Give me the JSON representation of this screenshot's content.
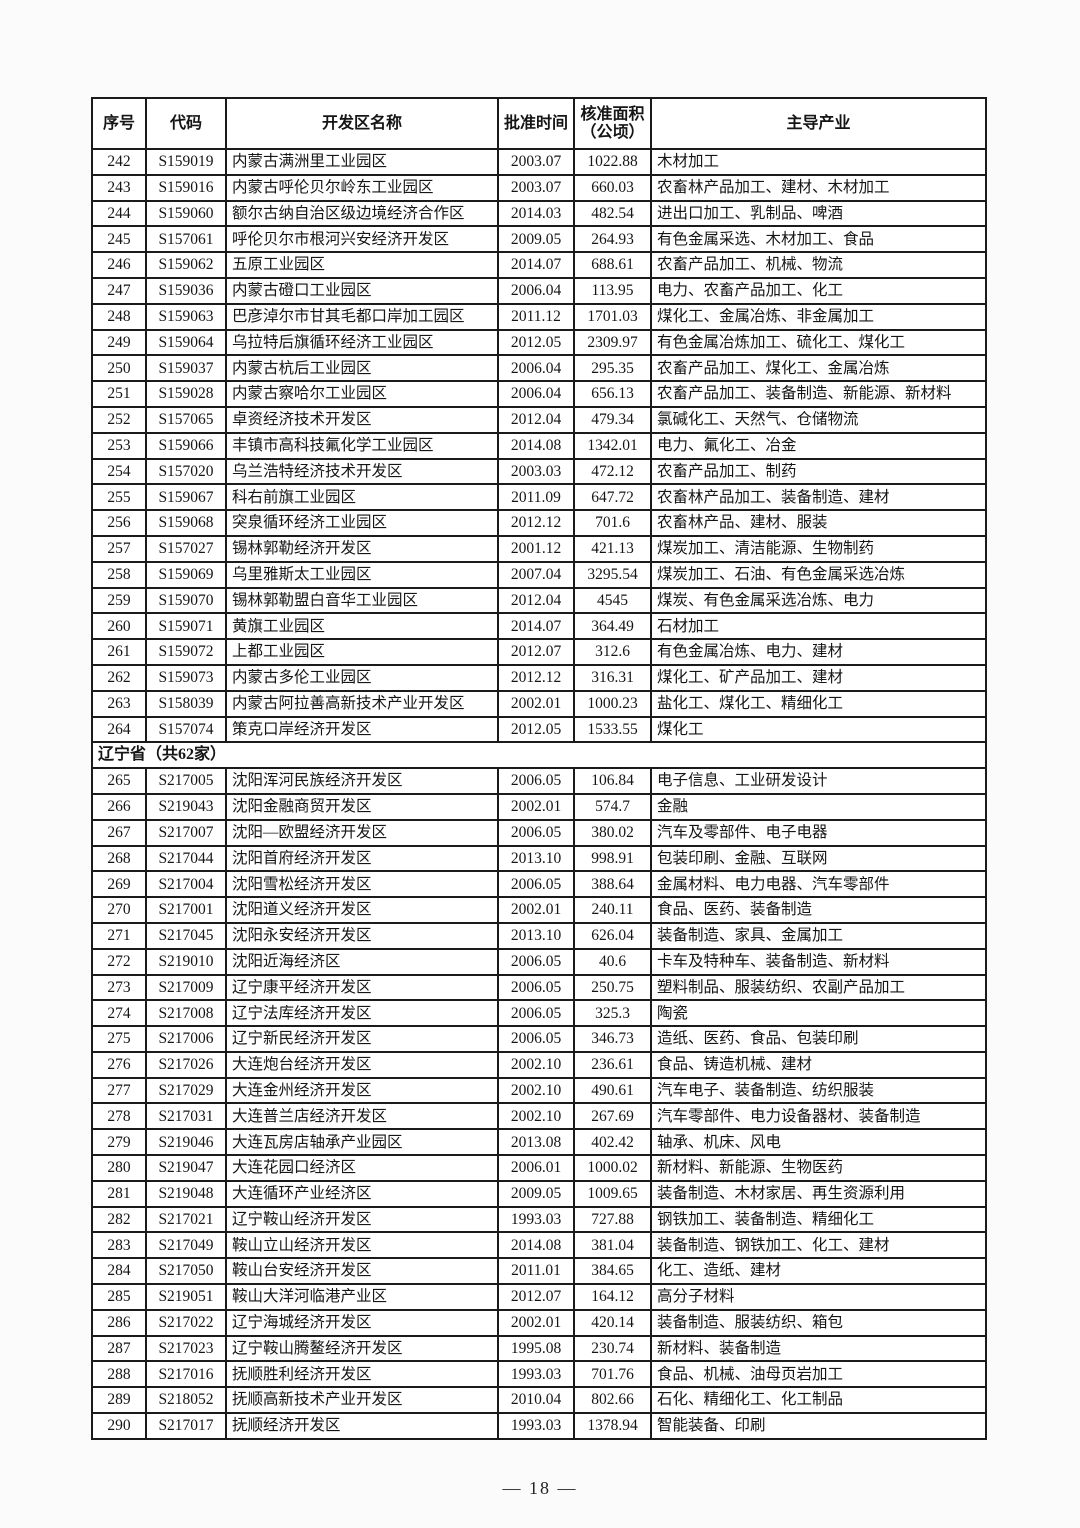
{
  "page": {
    "footer": "— 18 —"
  },
  "table": {
    "columns": [
      {
        "label": "序号"
      },
      {
        "label": "代码"
      },
      {
        "label": "开发区名称"
      },
      {
        "label": "批准时间"
      },
      {
        "label": "核准面积",
        "label2": "（公顷）"
      },
      {
        "label": "主导产业"
      }
    ],
    "rows": [
      {
        "no": "242",
        "code": "S159019",
        "name": "内蒙古满洲里工业园区",
        "date": "2003.07",
        "area": "1022.88",
        "industry": "木材加工"
      },
      {
        "no": "243",
        "code": "S159016",
        "name": "内蒙古呼伦贝尔岭东工业园区",
        "date": "2003.07",
        "area": "660.03",
        "industry": "农畜林产品加工、建材、木材加工"
      },
      {
        "no": "244",
        "code": "S159060",
        "name": "额尔古纳自治区级边境经济合作区",
        "date": "2014.03",
        "area": "482.54",
        "industry": "进出口加工、乳制品、啤酒"
      },
      {
        "no": "245",
        "code": "S157061",
        "name": "呼伦贝尔市根河兴安经济开发区",
        "date": "2009.05",
        "area": "264.93",
        "industry": "有色金属采选、木材加工、食品"
      },
      {
        "no": "246",
        "code": "S159062",
        "name": "五原工业园区",
        "date": "2014.07",
        "area": "688.61",
        "industry": "农畜产品加工、机械、物流"
      },
      {
        "no": "247",
        "code": "S159036",
        "name": "内蒙古磴口工业园区",
        "date": "2006.04",
        "area": "113.95",
        "industry": "电力、农畜产品加工、化工"
      },
      {
        "no": "248",
        "code": "S159063",
        "name": "巴彦淖尔市甘其毛都口岸加工园区",
        "date": "2011.12",
        "area": "1701.03",
        "industry": "煤化工、金属冶炼、非金属加工"
      },
      {
        "no": "249",
        "code": "S159064",
        "name": "乌拉特后旗循环经济工业园区",
        "date": "2012.05",
        "area": "2309.97",
        "industry": "有色金属冶炼加工、硫化工、煤化工"
      },
      {
        "no": "250",
        "code": "S159037",
        "name": "内蒙古杭后工业园区",
        "date": "2006.04",
        "area": "295.35",
        "industry": "农畜产品加工、煤化工、金属冶炼"
      },
      {
        "no": "251",
        "code": "S159028",
        "name": "内蒙古察哈尔工业园区",
        "date": "2006.04",
        "area": "656.13",
        "industry": "农畜产品加工、装备制造、新能源、新材料"
      },
      {
        "no": "252",
        "code": "S157065",
        "name": "卓资经济技术开发区",
        "date": "2012.04",
        "area": "479.34",
        "industry": "氯碱化工、天然气、仓储物流"
      },
      {
        "no": "253",
        "code": "S159066",
        "name": "丰镇市高科技氟化学工业园区",
        "date": "2014.08",
        "area": "1342.01",
        "industry": "电力、氟化工、冶金"
      },
      {
        "no": "254",
        "code": "S157020",
        "name": "乌兰浩特经济技术开发区",
        "date": "2003.03",
        "area": "472.12",
        "industry": "农畜产品加工、制药"
      },
      {
        "no": "255",
        "code": "S159067",
        "name": "科右前旗工业园区",
        "date": "2011.09",
        "area": "647.72",
        "industry": "农畜林产品加工、装备制造、建材"
      },
      {
        "no": "256",
        "code": "S159068",
        "name": "突泉循环经济工业园区",
        "date": "2012.12",
        "area": "701.6",
        "industry": "农畜林产品、建材、服装"
      },
      {
        "no": "257",
        "code": "S157027",
        "name": "锡林郭勒经济开发区",
        "date": "2001.12",
        "area": "421.13",
        "industry": "煤炭加工、清洁能源、生物制药"
      },
      {
        "no": "258",
        "code": "S159069",
        "name": "乌里雅斯太工业园区",
        "date": "2007.04",
        "area": "3295.54",
        "industry": "煤炭加工、石油、有色金属采选冶炼"
      },
      {
        "no": "259",
        "code": "S159070",
        "name": "锡林郭勒盟白音华工业园区",
        "date": "2012.04",
        "area": "4545",
        "industry": "煤炭、有色金属采选冶炼、电力"
      },
      {
        "no": "260",
        "code": "S159071",
        "name": "黄旗工业园区",
        "date": "2014.07",
        "area": "364.49",
        "industry": "石材加工"
      },
      {
        "no": "261",
        "code": "S159072",
        "name": "上都工业园区",
        "date": "2012.07",
        "area": "312.6",
        "industry": "有色金属冶炼、电力、建材"
      },
      {
        "no": "262",
        "code": "S159073",
        "name": "内蒙古多伦工业园区",
        "date": "2012.12",
        "area": "316.31",
        "industry": "煤化工、矿产品加工、建材"
      },
      {
        "no": "263",
        "code": "S158039",
        "name": "内蒙古阿拉善高新技术产业开发区",
        "date": "2002.01",
        "area": "1000.23",
        "industry": "盐化工、煤化工、精细化工"
      },
      {
        "no": "264",
        "code": "S157074",
        "name": "策克口岸经济开发区",
        "date": "2012.05",
        "area": "1533.55",
        "industry": "煤化工"
      },
      {
        "section": "辽宁省（共62家）"
      },
      {
        "no": "265",
        "code": "S217005",
        "name": "沈阳浑河民族经济开发区",
        "date": "2006.05",
        "area": "106.84",
        "industry": "电子信息、工业研发设计"
      },
      {
        "no": "266",
        "code": "S219043",
        "name": "沈阳金融商贸开发区",
        "date": "2002.01",
        "area": "574.7",
        "industry": "金融"
      },
      {
        "no": "267",
        "code": "S217007",
        "name": "沈阳—欧盟经济开发区",
        "date": "2006.05",
        "area": "380.02",
        "industry": "汽车及零部件、电子电器"
      },
      {
        "no": "268",
        "code": "S217044",
        "name": "沈阳首府经济开发区",
        "date": "2013.10",
        "area": "998.91",
        "industry": "包装印刷、金融、互联网"
      },
      {
        "no": "269",
        "code": "S217004",
        "name": "沈阳雪松经济开发区",
        "date": "2006.05",
        "area": "388.64",
        "industry": "金属材料、电力电器、汽车零部件"
      },
      {
        "no": "270",
        "code": "S217001",
        "name": "沈阳道义经济开发区",
        "date": "2002.01",
        "area": "240.11",
        "industry": "食品、医药、装备制造"
      },
      {
        "no": "271",
        "code": "S217045",
        "name": "沈阳永安经济开发区",
        "date": "2013.10",
        "area": "626.04",
        "industry": "装备制造、家具、金属加工"
      },
      {
        "no": "272",
        "code": "S219010",
        "name": "沈阳近海经济区",
        "date": "2006.05",
        "area": "40.6",
        "industry": "卡车及特种车、装备制造、新材料"
      },
      {
        "no": "273",
        "code": "S217009",
        "name": "辽宁康平经济开发区",
        "date": "2006.05",
        "area": "250.75",
        "industry": "塑料制品、服装纺织、农副产品加工"
      },
      {
        "no": "274",
        "code": "S217008",
        "name": "辽宁法库经济开发区",
        "date": "2006.05",
        "area": "325.3",
        "industry": "陶瓷"
      },
      {
        "no": "275",
        "code": "S217006",
        "name": "辽宁新民经济开发区",
        "date": "2006.05",
        "area": "346.73",
        "industry": "造纸、医药、食品、包装印刷"
      },
      {
        "no": "276",
        "code": "S217026",
        "name": "大连炮台经济开发区",
        "date": "2002.10",
        "area": "236.61",
        "industry": "食品、铸造机械、建材"
      },
      {
        "no": "277",
        "code": "S217029",
        "name": "大连金州经济开发区",
        "date": "2002.10",
        "area": "490.61",
        "industry": "汽车电子、装备制造、纺织服装"
      },
      {
        "no": "278",
        "code": "S217031",
        "name": "大连普兰店经济开发区",
        "date": "2002.10",
        "area": "267.69",
        "industry": "汽车零部件、电力设备器材、装备制造"
      },
      {
        "no": "279",
        "code": "S219046",
        "name": "大连瓦房店轴承产业园区",
        "date": "2013.08",
        "area": "402.42",
        "industry": "轴承、机床、风电"
      },
      {
        "no": "280",
        "code": "S219047",
        "name": "大连花园口经济区",
        "date": "2006.01",
        "area": "1000.02",
        "industry": "新材料、新能源、生物医药"
      },
      {
        "no": "281",
        "code": "S219048",
        "name": "大连循环产业经济区",
        "date": "2009.05",
        "area": "1009.65",
        "industry": "装备制造、木材家居、再生资源利用"
      },
      {
        "no": "282",
        "code": "S217021",
        "name": "辽宁鞍山经济开发区",
        "date": "1993.03",
        "area": "727.88",
        "industry": "钢铁加工、装备制造、精细化工"
      },
      {
        "no": "283",
        "code": "S217049",
        "name": "鞍山立山经济开发区",
        "date": "2014.08",
        "area": "381.04",
        "industry": "装备制造、钢铁加工、化工、建材"
      },
      {
        "no": "284",
        "code": "S217050",
        "name": "鞍山台安经济开发区",
        "date": "2011.01",
        "area": "384.65",
        "industry": "化工、造纸、建材"
      },
      {
        "no": "285",
        "code": "S219051",
        "name": "鞍山大洋河临港产业区",
        "date": "2012.07",
        "area": "164.12",
        "industry": "高分子材料"
      },
      {
        "no": "286",
        "code": "S217022",
        "name": "辽宁海城经济开发区",
        "date": "2002.01",
        "area": "420.14",
        "industry": "装备制造、服装纺织、箱包"
      },
      {
        "no": "287",
        "code": "S217023",
        "name": "辽宁鞍山腾鳌经济开发区",
        "date": "1995.08",
        "area": "230.74",
        "industry": "新材料、装备制造"
      },
      {
        "no": "288",
        "code": "S217016",
        "name": "抚顺胜利经济开发区",
        "date": "1993.03",
        "area": "701.76",
        "industry": "食品、机械、油母页岩加工"
      },
      {
        "no": "289",
        "code": "S218052",
        "name": "抚顺高新技术产业开发区",
        "date": "2010.04",
        "area": "802.66",
        "industry": "石化、精细化工、化工制品"
      },
      {
        "no": "290",
        "code": "S217017",
        "name": "抚顺经济开发区",
        "date": "1993.03",
        "area": "1378.94",
        "industry": "智能装备、印刷"
      }
    ]
  }
}
